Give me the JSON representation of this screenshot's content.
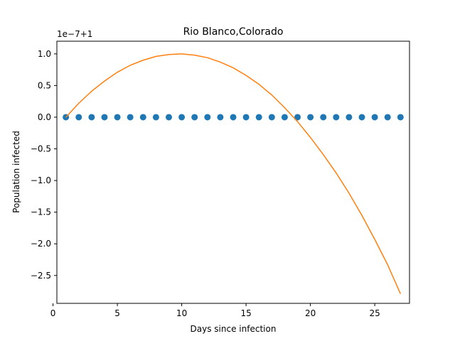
{
  "chart_data": {
    "type": "scatter+line",
    "title": "Rio Blanco,Colorado",
    "xlabel": "Days since infection",
    "ylabel": "Population infected",
    "offset_label": "1e−7+1",
    "xlim": [
      0.3,
      27.7
    ],
    "ylim": [
      -2.94,
      1.2
    ],
    "xticks": [
      0,
      5,
      10,
      15,
      20,
      25
    ],
    "xtick_labels": [
      "0",
      "5",
      "10",
      "15",
      "20",
      "25"
    ],
    "yticks": [
      1.0,
      0.5,
      0.0,
      -0.5,
      -1.0,
      -1.5,
      -2.0,
      -2.5
    ],
    "ytick_labels": [
      "1.0",
      "0.5",
      "0.0",
      "−0.5",
      "−1.0",
      "−1.5",
      "−2.0",
      "−2.5"
    ],
    "grid": false,
    "series": [
      {
        "kind": "scatter",
        "color": "#1f77b4",
        "x": [
          1,
          2,
          3,
          4,
          5,
          6,
          7,
          8,
          9,
          10,
          11,
          12,
          13,
          14,
          15,
          16,
          17,
          18,
          19,
          20,
          21,
          22,
          23,
          24,
          25,
          26,
          27
        ],
        "y": [
          0,
          0,
          0,
          0,
          0,
          0,
          0,
          0,
          0,
          0,
          0,
          0,
          0,
          0,
          0,
          0,
          0,
          0,
          0,
          0,
          0,
          0,
          0,
          0,
          0,
          0,
          0
        ]
      },
      {
        "kind": "line",
        "color": "#ff7f0e",
        "x": [
          1,
          2,
          3,
          4,
          5,
          6,
          7,
          8,
          9,
          10,
          11,
          12,
          13,
          14,
          15,
          16,
          17,
          18,
          19,
          20,
          21,
          22,
          23,
          24,
          25,
          26,
          27
        ],
        "y": [
          0.0,
          0.22,
          0.41,
          0.57,
          0.71,
          0.82,
          0.9,
          0.96,
          0.99,
          1.0,
          0.98,
          0.94,
          0.87,
          0.78,
          0.66,
          0.52,
          0.35,
          0.15,
          -0.07,
          -0.32,
          -0.59,
          -0.88,
          -1.2,
          -1.55,
          -1.93,
          -2.33,
          -2.79
        ]
      }
    ]
  }
}
